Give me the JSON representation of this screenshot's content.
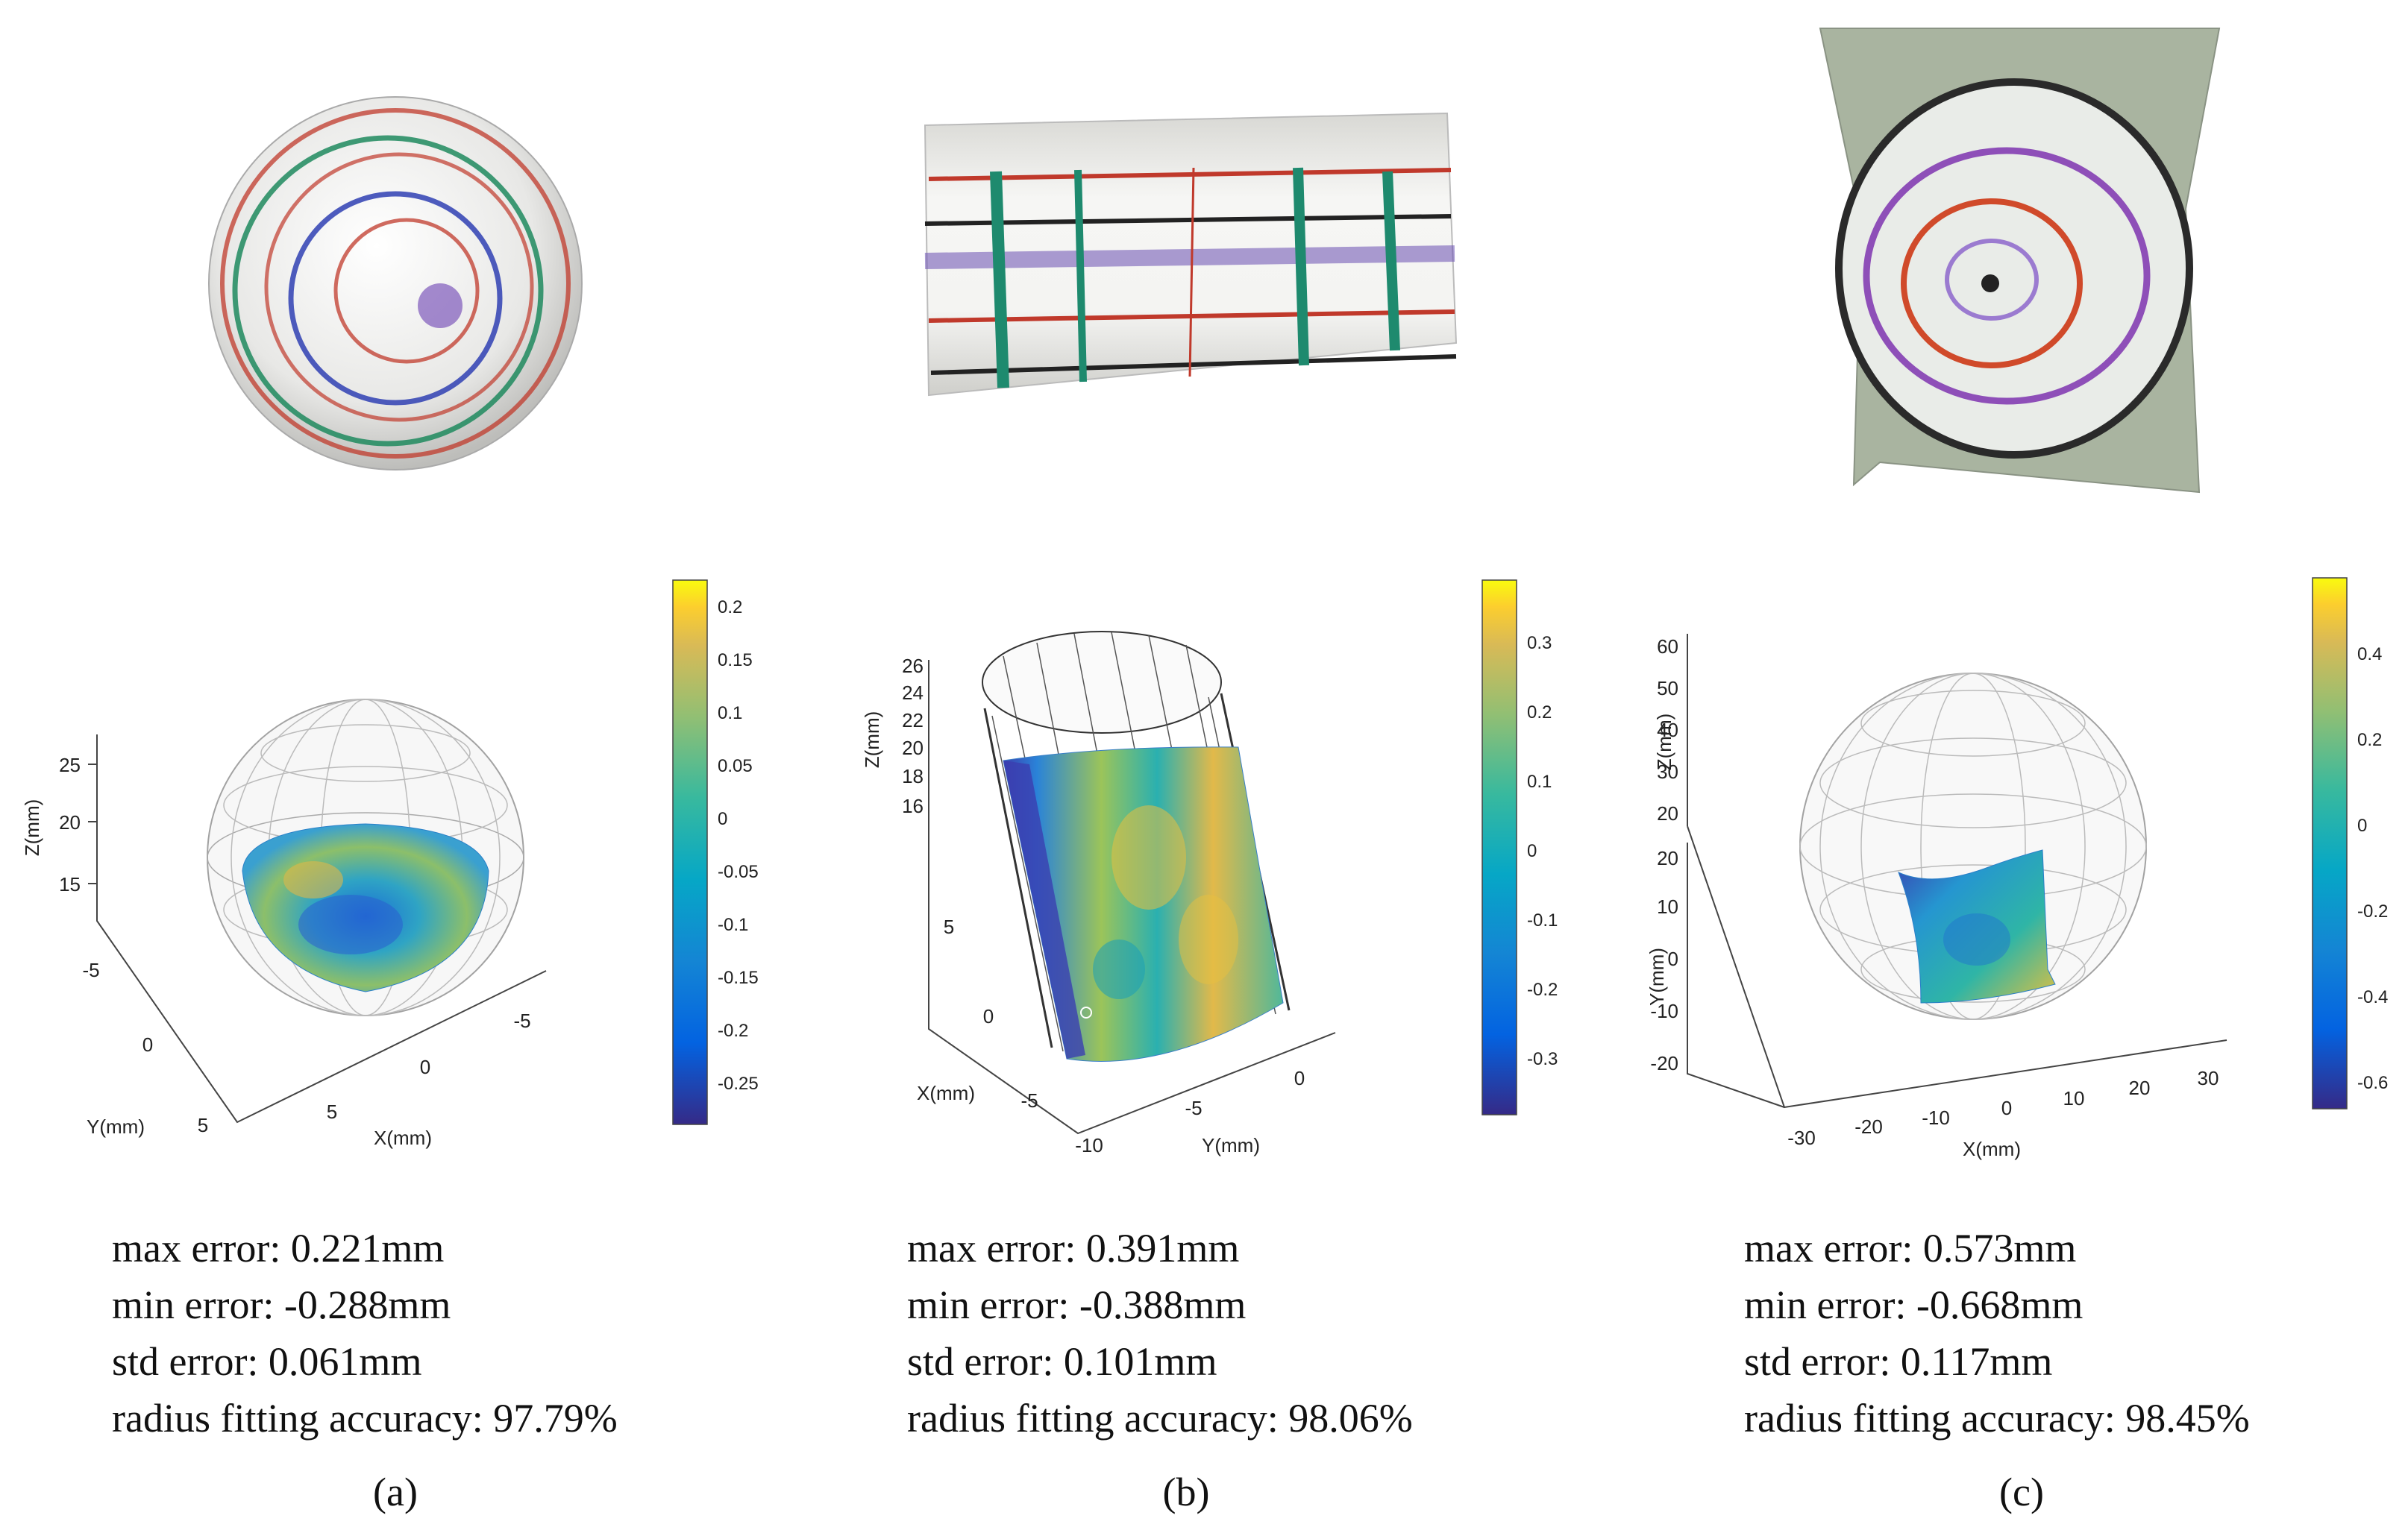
{
  "panels": [
    {
      "caption": "(a)",
      "photo": "scanned hemisphere with colored rings",
      "plot": {
        "zlabel": "Z(mm)",
        "xlabel": "X(mm)",
        "ylabel": "Y(mm)",
        "zticks": [
          "25",
          "20",
          "15"
        ],
        "yticks": [
          "-5",
          "0",
          "5"
        ],
        "xticks": [
          "5",
          "0",
          "-5"
        ],
        "colorbar_ticks": [
          "0.2",
          "0.15",
          "0.1",
          "0.05",
          "0",
          "-0.05",
          "-0.1",
          "-0.15",
          "-0.2",
          "-0.25"
        ]
      },
      "stats": {
        "max": "max error: 0.221mm",
        "min": "min error: -0.288mm",
        "std": "std error: 0.061mm",
        "acc": "radius fitting accuracy: 97.79%"
      }
    },
    {
      "caption": "(b)",
      "photo": "scanned cylinder with colored grid lines",
      "plot": {
        "zlabel": "Z(mm)",
        "xlabel": "X(mm)",
        "ylabel": "Y(mm)",
        "zticks": [
          "26",
          "24",
          "22",
          "20",
          "18",
          "16"
        ],
        "xticks": [
          "5",
          "0",
          "-5"
        ],
        "yticks": [
          "-10",
          "-5",
          "0"
        ],
        "colorbar_ticks": [
          "0.3",
          "0.2",
          "0.1",
          "0",
          "-0.1",
          "-0.2",
          "-0.3"
        ]
      },
      "stats": {
        "max": "max error: 0.391mm",
        "min": "min error: -0.388mm",
        "std": "std error: 0.101mm",
        "acc": "radius fitting accuracy: 98.06%"
      }
    },
    {
      "caption": "(c)",
      "photo": "scanned concave surface with colored rings",
      "plot": {
        "zlabel": "Z(mm)",
        "xlabel": "X(mm)",
        "ylabel": "Y(mm)",
        "zticks": [
          "60",
          "50",
          "40",
          "30",
          "20"
        ],
        "yticks": [
          "20",
          "10",
          "0",
          "-10",
          "-20"
        ],
        "xticks": [
          "-30",
          "-20",
          "-10",
          "0",
          "10",
          "20",
          "30"
        ],
        "colorbar_ticks": [
          "0.4",
          "0.2",
          "0",
          "-0.2",
          "-0.4",
          "-0.6"
        ]
      },
      "stats": {
        "max": "max error: 0.573mm",
        "min": "min error: -0.668mm",
        "std": "std error: 0.117mm",
        "acc": "radius fitting accuracy: 98.45%"
      }
    }
  ]
}
